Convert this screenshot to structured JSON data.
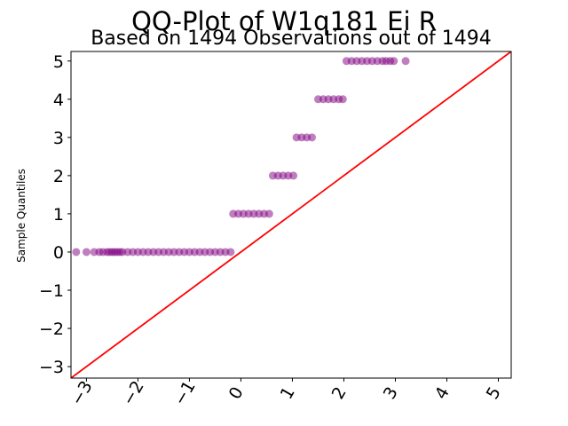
{
  "chart_data": {
    "type": "scatter",
    "title": "QQ-Plot of W1q181 Ei R",
    "subtitle": "Based on 1494 Observations out of 1494",
    "xlabel": "",
    "ylabel": "Sample Quantiles",
    "xlim": [
      -3.3,
      5.25
    ],
    "ylim": [
      -3.3,
      5.25
    ],
    "x_ticks": [
      "−3",
      "−2",
      "−1",
      "0",
      "1",
      "2",
      "3",
      "4",
      "5"
    ],
    "y_ticks": [
      "−3",
      "−2",
      "−1",
      "0",
      "1",
      "2",
      "3",
      "4",
      "5"
    ],
    "grid": false,
    "marker_color": "#800080",
    "line_color": "#ff0000",
    "reference_line": {
      "from": [
        -3.3,
        -3.3
      ],
      "to": [
        5.25,
        5.25
      ]
    },
    "series": [
      {
        "points": [
          {
            "x": -3.2,
            "y": 0
          },
          {
            "x": -3.0,
            "y": 0
          },
          {
            "x": -2.85,
            "y": 0
          },
          {
            "x": -2.75,
            "y": 0
          },
          {
            "x": -2.68,
            "y": 0
          },
          {
            "x": -2.6,
            "y": 0
          },
          {
            "x": -2.55,
            "y": 0
          },
          {
            "x": -2.5,
            "y": 0
          },
          {
            "x": -2.45,
            "y": 0
          },
          {
            "x": -2.4,
            "y": 0
          },
          {
            "x": -2.35,
            "y": 0
          },
          {
            "x": -2.3,
            "y": 0
          },
          {
            "x": -2.2,
            "y": 0
          },
          {
            "x": -2.1,
            "y": 0
          },
          {
            "x": -2.0,
            "y": 0
          },
          {
            "x": -1.9,
            "y": 0
          },
          {
            "x": -1.8,
            "y": 0
          },
          {
            "x": -1.7,
            "y": 0
          },
          {
            "x": -1.6,
            "y": 0
          },
          {
            "x": -1.5,
            "y": 0
          },
          {
            "x": -1.4,
            "y": 0
          },
          {
            "x": -1.3,
            "y": 0
          },
          {
            "x": -1.2,
            "y": 0
          },
          {
            "x": -1.1,
            "y": 0
          },
          {
            "x": -1.0,
            "y": 0
          },
          {
            "x": -0.9,
            "y": 0
          },
          {
            "x": -0.8,
            "y": 0
          },
          {
            "x": -0.7,
            "y": 0
          },
          {
            "x": -0.6,
            "y": 0
          },
          {
            "x": -0.5,
            "y": 0
          },
          {
            "x": -0.4,
            "y": 0
          },
          {
            "x": -0.3,
            "y": 0
          },
          {
            "x": -0.2,
            "y": 0
          },
          {
            "x": -0.15,
            "y": 1
          },
          {
            "x": -0.05,
            "y": 1
          },
          {
            "x": 0.05,
            "y": 1
          },
          {
            "x": 0.15,
            "y": 1
          },
          {
            "x": 0.25,
            "y": 1
          },
          {
            "x": 0.35,
            "y": 1
          },
          {
            "x": 0.45,
            "y": 1
          },
          {
            "x": 0.55,
            "y": 1
          },
          {
            "x": 0.62,
            "y": 2
          },
          {
            "x": 0.72,
            "y": 2
          },
          {
            "x": 0.82,
            "y": 2
          },
          {
            "x": 0.92,
            "y": 2
          },
          {
            "x": 1.02,
            "y": 2
          },
          {
            "x": 1.08,
            "y": 3
          },
          {
            "x": 1.18,
            "y": 3
          },
          {
            "x": 1.28,
            "y": 3
          },
          {
            "x": 1.38,
            "y": 3
          },
          {
            "x": 1.5,
            "y": 4
          },
          {
            "x": 1.6,
            "y": 4
          },
          {
            "x": 1.7,
            "y": 4
          },
          {
            "x": 1.8,
            "y": 4
          },
          {
            "x": 1.9,
            "y": 4
          },
          {
            "x": 1.98,
            "y": 4
          },
          {
            "x": 2.05,
            "y": 5
          },
          {
            "x": 2.15,
            "y": 5
          },
          {
            "x": 2.25,
            "y": 5
          },
          {
            "x": 2.35,
            "y": 5
          },
          {
            "x": 2.45,
            "y": 5
          },
          {
            "x": 2.55,
            "y": 5
          },
          {
            "x": 2.65,
            "y": 5
          },
          {
            "x": 2.75,
            "y": 5
          },
          {
            "x": 2.82,
            "y": 5
          },
          {
            "x": 2.9,
            "y": 5
          },
          {
            "x": 2.97,
            "y": 5
          },
          {
            "x": 3.2,
            "y": 5
          }
        ]
      }
    ]
  }
}
